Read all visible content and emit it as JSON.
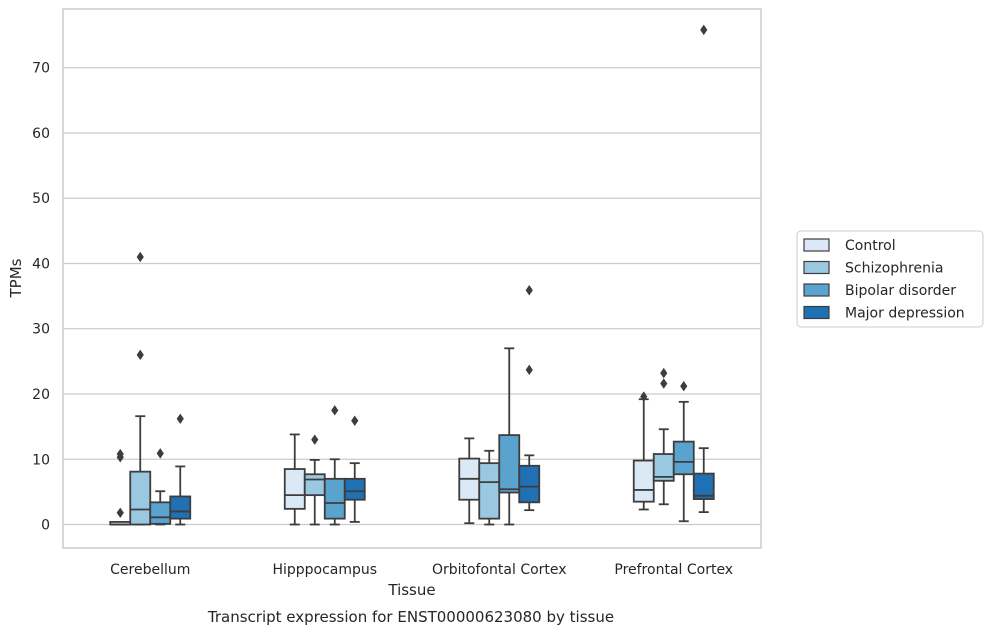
{
  "chart_data": {
    "type": "box",
    "ylabel": "TPMs",
    "xlabel": "Tissue",
    "caption": "Transcript expression for ENST00000623080 by tissue",
    "ylim": [
      -3.6,
      79
    ],
    "yticks": [
      0,
      10,
      20,
      30,
      40,
      50,
      60,
      70
    ],
    "grid": "horizontal",
    "legend_position": "right",
    "categories": [
      "Cerebellum",
      "Hipppocampus",
      "Orbitofontal Cortex",
      "Prefrontal Cortex"
    ],
    "series": [
      {
        "name": "Control",
        "color": "#dbe9f6",
        "boxes": [
          {
            "whislo": 0,
            "q1": 0,
            "med": 0,
            "q3": 0.4,
            "whishi": 0.4,
            "fliers": [
              1.8,
              10.3,
              10.8
            ]
          },
          {
            "whislo": 0,
            "q1": 2.4,
            "med": 4.5,
            "q3": 8.5,
            "whishi": 13.8,
            "fliers": []
          },
          {
            "whislo": 0.2,
            "q1": 3.8,
            "med": 7.0,
            "q3": 10.1,
            "whishi": 13.2,
            "fliers": []
          },
          {
            "whislo": 2.3,
            "q1": 3.5,
            "med": 5.3,
            "q3": 9.8,
            "whishi": 19.2,
            "fliers": [
              19.6
            ]
          }
        ]
      },
      {
        "name": "Schizophrenia",
        "color": "#9ac8e0",
        "boxes": [
          {
            "whislo": 0,
            "q1": 0,
            "med": 2.3,
            "q3": 8.1,
            "whishi": 16.6,
            "fliers": [
              26.0,
              41.0
            ]
          },
          {
            "whislo": 0,
            "q1": 4.5,
            "med": 6.9,
            "q3": 7.7,
            "whishi": 9.9,
            "fliers": [
              13.0
            ]
          },
          {
            "whislo": 0,
            "q1": 0.9,
            "med": 6.5,
            "q3": 9.4,
            "whishi": 11.3,
            "fliers": []
          },
          {
            "whislo": 3.1,
            "q1": 6.7,
            "med": 7.3,
            "q3": 10.8,
            "whishi": 14.6,
            "fliers": [
              21.6,
              23.2
            ]
          }
        ]
      },
      {
        "name": "Bipolar disorder",
        "color": "#5ba3cf",
        "boxes": [
          {
            "whislo": 0,
            "q1": 0.1,
            "med": 1.1,
            "q3": 3.4,
            "whishi": 5.1,
            "fliers": [
              10.9
            ]
          },
          {
            "whislo": 0,
            "q1": 0.9,
            "med": 3.3,
            "q3": 7.0,
            "whishi": 10.0,
            "fliers": [
              17.5
            ]
          },
          {
            "whislo": 0,
            "q1": 4.9,
            "med": 5.4,
            "q3": 13.7,
            "whishi": 27.0,
            "fliers": []
          },
          {
            "whislo": 0.5,
            "q1": 7.7,
            "med": 9.6,
            "q3": 12.7,
            "whishi": 18.8,
            "fliers": [
              21.2
            ]
          }
        ]
      },
      {
        "name": "Major depression",
        "color": "#2070b4",
        "boxes": [
          {
            "whislo": 0,
            "q1": 0.9,
            "med": 2.0,
            "q3": 4.3,
            "whishi": 8.9,
            "fliers": [
              16.2
            ]
          },
          {
            "whislo": 0.4,
            "q1": 3.8,
            "med": 5.1,
            "q3": 7.0,
            "whishi": 9.4,
            "fliers": [
              15.9
            ]
          },
          {
            "whislo": 2.2,
            "q1": 3.4,
            "med": 5.8,
            "q3": 9.0,
            "whishi": 10.6,
            "fliers": [
              23.7,
              35.9
            ]
          },
          {
            "whislo": 1.9,
            "q1": 3.9,
            "med": 4.4,
            "q3": 7.8,
            "whishi": 11.7,
            "fliers": [
              75.8
            ]
          }
        ]
      }
    ]
  }
}
